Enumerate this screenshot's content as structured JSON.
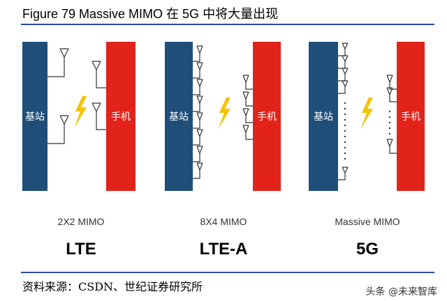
{
  "header": {
    "title": "Figure 79 Massive MIMO 在 5G 中将大量出现"
  },
  "panels": [
    {
      "caption": "2X2 MIMO",
      "tech": "LTE",
      "base_label": "基站",
      "phone_label": "手机"
    },
    {
      "caption": "8X4 MIMO",
      "tech": "LTE-A",
      "base_label": "基站",
      "phone_label": "手机"
    },
    {
      "caption": "Massive MIMO",
      "tech": "5G",
      "base_label": "基站",
      "phone_label": "手机"
    }
  ],
  "footer": {
    "source": "资料来源：CSDN、世纪证券研究所",
    "watermark": "头条 @未来智库"
  },
  "colors": {
    "base_block": "#1f4e79",
    "phone_block": "#e2231a",
    "lightning": "#f5c200",
    "rule": "#2b4c9b"
  }
}
